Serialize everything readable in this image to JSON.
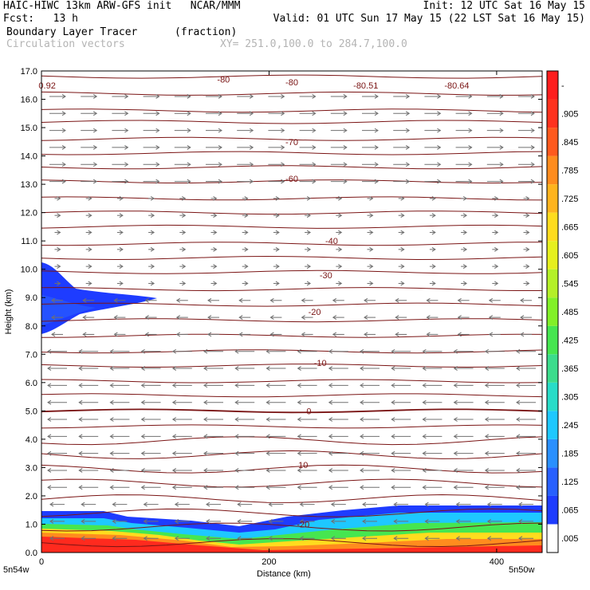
{
  "header": {
    "line1_left": "HAIC-HIWC 13km ARW-GFS init   NCAR/MMM",
    "line1_right": "Init: 12 UTC Sat 16 May 15",
    "line2_left": "Fcst:   13 h",
    "line2_right": "Valid: 01 UTC Sun 17 May 15 (22 LST Sat 16 May 15)",
    "line3_left": "Boundary Layer Tracer",
    "line3_mid": "(fraction)",
    "line4_left": "Circulation vectors",
    "line4_mid": "XY= 251.0,100.0 to 284.7,100.0"
  },
  "chart_data": {
    "type": "heatmap",
    "xlabel": "Distance (km)",
    "ylabel": "Height (km)",
    "xlim": [
      0,
      440
    ],
    "ylim": [
      0,
      17
    ],
    "x_ticks": [
      0,
      200,
      400
    ],
    "y_ticks": [
      "0.0",
      "1.0",
      "2.0",
      "3.0",
      "4.0",
      "5.0",
      "6.0",
      "7.0",
      "8.0",
      "9.0",
      "10.0",
      "11.0",
      "12.0",
      "13.0",
      "14.0",
      "15.0",
      "16.0",
      "17.0"
    ],
    "x_end_labels": [
      "5n54w",
      "5n50w"
    ],
    "colorbar": {
      "labels": [
        ".005",
        ".065",
        ".125",
        ".185",
        ".245",
        ".305",
        ".365",
        ".425",
        ".485",
        ".545",
        ".605",
        ".665",
        ".725",
        ".785",
        ".845",
        ".905",
        "-"
      ],
      "colors": [
        "#ffffff",
        "#1e3cff",
        "#2860ff",
        "#2a90ff",
        "#1ec8ff",
        "#28dcc8",
        "#3cdc8c",
        "#46e650",
        "#82f028",
        "#b4f028",
        "#e6f01e",
        "#ffdc1e",
        "#ffb41e",
        "#ff8c1e",
        "#ff5a1e",
        "#ff321e",
        "#ff1e1e"
      ]
    },
    "temperature_contour_labels": [
      {
        "label": "-80",
        "km": 220,
        "h": 16.6
      },
      {
        "label": "-80",
        "km": 160,
        "h": 16.7
      },
      {
        "label": "-80.51",
        "km": 285,
        "h": 16.5
      },
      {
        "label": "-80.64",
        "km": 365,
        "h": 16.5
      },
      {
        "label": "0.92",
        "km": 5,
        "h": 16.5
      },
      {
        "label": "-70",
        "km": 220,
        "h": 14.5
      },
      {
        "label": "-60",
        "km": 220,
        "h": 13.2
      },
      {
        "label": "-40",
        "km": 255,
        "h": 11.0
      },
      {
        "label": "-30",
        "km": 250,
        "h": 9.8
      },
      {
        "label": "-20",
        "km": 240,
        "h": 8.5
      },
      {
        "label": "-10",
        "km": 245,
        "h": 6.7
      },
      {
        "label": "0",
        "km": 235,
        "h": 5.0
      },
      {
        "label": "10",
        "km": 230,
        "h": 3.1
      },
      {
        "label": "-20",
        "km": 230,
        "h": 1.0
      }
    ]
  }
}
